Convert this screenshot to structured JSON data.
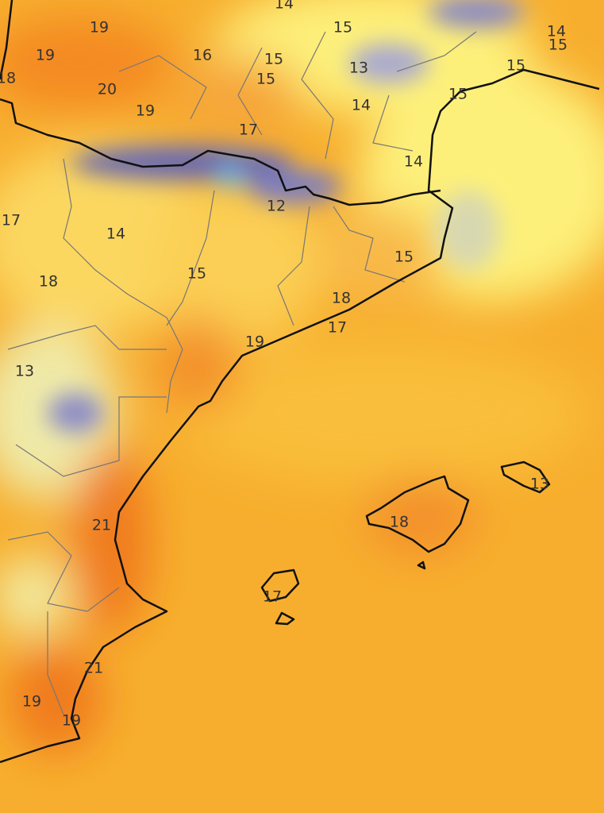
{
  "temperature_labels": [
    14,
    19,
    19,
    18,
    16,
    15,
    15,
    15,
    13,
    14,
    15,
    15,
    15,
    20,
    19,
    17,
    14,
    14,
    12,
    17,
    14,
    15,
    15,
    18,
    18,
    17,
    19,
    13,
    21,
    18,
    13,
    17,
    21,
    19,
    19
  ]
}
